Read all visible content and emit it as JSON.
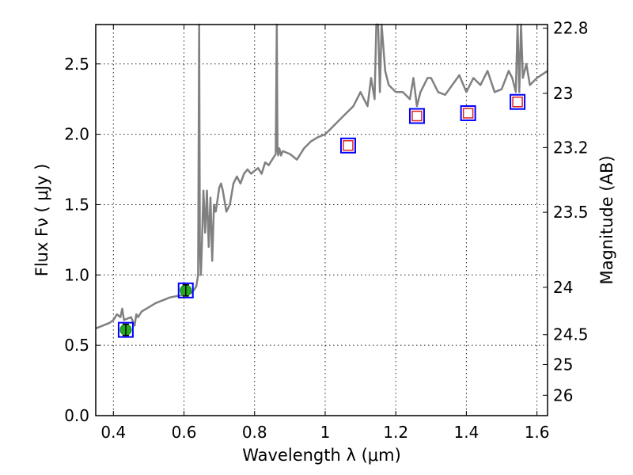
{
  "chart_data": {
    "type": "line",
    "xlabel": "Wavelength  λ (μm)",
    "ylabel": "Flux  Fν  ( μJy )",
    "y2label": "Magnitude (AB)",
    "xlim": [
      0.35,
      1.63
    ],
    "ylim": [
      0.0,
      2.78
    ],
    "grid": true,
    "x_ticks": [
      0.4,
      0.6,
      0.8,
      1.0,
      1.2,
      1.4,
      1.6
    ],
    "x_tick_labels": [
      "0.4",
      "0.6",
      "0.8",
      "1",
      "1.2",
      "1.4",
      "1.6"
    ],
    "y_ticks": [
      0.0,
      0.5,
      1.0,
      1.5,
      2.0,
      2.5
    ],
    "y_tick_labels": [
      "0.0",
      "0.5",
      "1.0",
      "1.5",
      "2.0",
      "2.5"
    ],
    "mag_ticks": [
      22.8,
      23,
      23.2,
      23.5,
      24,
      24.5,
      25,
      26
    ],
    "mag_tick_labels": [
      "22.8",
      "23",
      "23.2",
      "23.5",
      "24",
      "24.5",
      "25",
      "26"
    ],
    "series": [
      {
        "kind": "spectrum",
        "color": "#808080",
        "x": [
          0.35,
          0.37,
          0.39,
          0.4,
          0.41,
          0.42,
          0.425,
          0.43,
          0.45,
          0.46,
          0.465,
          0.47,
          0.48,
          0.5,
          0.52,
          0.54,
          0.56,
          0.58,
          0.6,
          0.61,
          0.62,
          0.63,
          0.635,
          0.64,
          0.643,
          0.645,
          0.648,
          0.65,
          0.655,
          0.66,
          0.665,
          0.67,
          0.675,
          0.68,
          0.685,
          0.69,
          0.7,
          0.705,
          0.71,
          0.72,
          0.73,
          0.74,
          0.75,
          0.76,
          0.77,
          0.78,
          0.79,
          0.8,
          0.81,
          0.82,
          0.83,
          0.84,
          0.85,
          0.86,
          0.863,
          0.865,
          0.867,
          0.87,
          0.875,
          0.88,
          0.9,
          0.92,
          0.94,
          0.96,
          0.98,
          1.0,
          1.02,
          1.04,
          1.06,
          1.08,
          1.1,
          1.12,
          1.13,
          1.14,
          1.145,
          1.15,
          1.155,
          1.16,
          1.17,
          1.18,
          1.2,
          1.22,
          1.24,
          1.25,
          1.26,
          1.27,
          1.28,
          1.29,
          1.3,
          1.32,
          1.34,
          1.36,
          1.38,
          1.4,
          1.42,
          1.44,
          1.46,
          1.48,
          1.5,
          1.52,
          1.53,
          1.54,
          1.545,
          1.55,
          1.555,
          1.56,
          1.57,
          1.58,
          1.6,
          1.63
        ],
        "y": [
          0.62,
          0.64,
          0.66,
          0.68,
          0.72,
          0.7,
          0.76,
          0.68,
          0.7,
          0.64,
          0.72,
          0.7,
          0.74,
          0.77,
          0.8,
          0.82,
          0.84,
          0.85,
          0.86,
          0.88,
          0.87,
          0.9,
          0.92,
          1.0,
          2.78,
          1.2,
          1.0,
          1.15,
          1.6,
          1.3,
          1.6,
          1.2,
          1.55,
          1.1,
          1.5,
          1.45,
          1.62,
          1.65,
          1.6,
          1.45,
          1.5,
          1.65,
          1.7,
          1.65,
          1.72,
          1.75,
          1.72,
          1.74,
          1.76,
          1.72,
          1.8,
          1.78,
          1.82,
          1.86,
          2.78,
          1.9,
          1.85,
          1.9,
          1.85,
          1.88,
          1.86,
          1.82,
          1.9,
          1.95,
          1.98,
          2.0,
          2.05,
          2.1,
          2.15,
          2.2,
          2.3,
          2.2,
          2.4,
          2.25,
          2.78,
          2.78,
          2.3,
          2.78,
          2.45,
          2.35,
          2.3,
          2.3,
          2.25,
          2.4,
          2.2,
          2.3,
          2.35,
          2.4,
          2.4,
          2.3,
          2.28,
          2.35,
          2.42,
          2.3,
          2.4,
          2.35,
          2.45,
          2.3,
          2.32,
          2.45,
          2.4,
          2.3,
          2.78,
          2.3,
          2.78,
          2.4,
          2.5,
          2.35,
          2.4,
          2.45
        ]
      },
      {
        "kind": "observed",
        "marker": "circle",
        "color": "#22aa22",
        "x": [
          0.435,
          0.605
        ],
        "y": [
          0.61,
          0.89
        ],
        "yerr": [
          0.04,
          0.04
        ]
      },
      {
        "kind": "model-photometry",
        "marker": "square",
        "color": "#0000ff",
        "x": [
          0.435,
          0.605,
          1.065,
          1.26,
          1.405,
          1.545
        ],
        "y": [
          0.61,
          0.89,
          1.92,
          2.13,
          2.15,
          2.23
        ]
      },
      {
        "kind": "upper-points",
        "marker": "square",
        "color": "#dd2222",
        "x": [
          1.065,
          1.26,
          1.405,
          1.545
        ],
        "y": [
          1.92,
          2.13,
          2.15,
          2.23
        ]
      }
    ]
  }
}
